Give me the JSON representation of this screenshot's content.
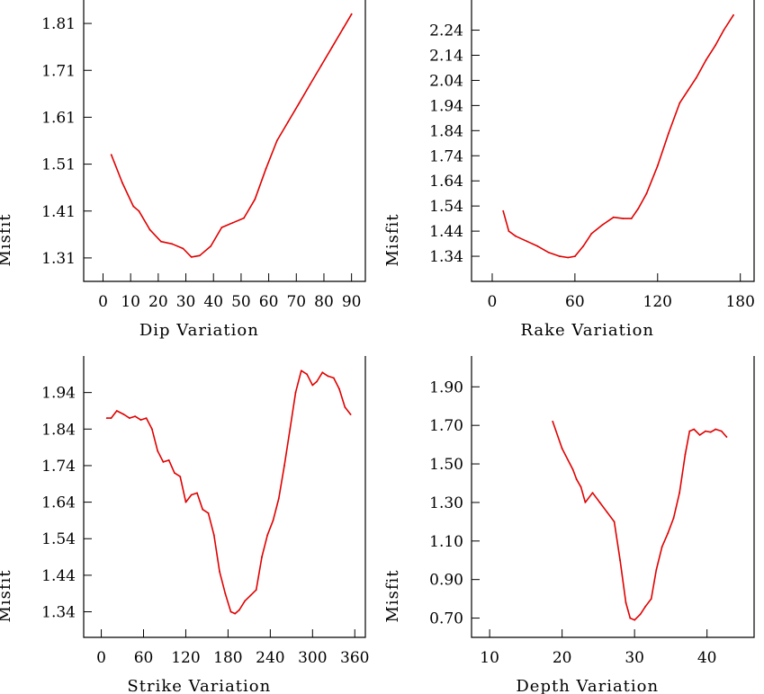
{
  "line_color": "#e00000",
  "chart_data": [
    {
      "type": "line",
      "xlabel": "Dip    Variation",
      "ylabel": "Misfit",
      "xlim": [
        -7,
        95
      ],
      "ylim": [
        1.26,
        1.86
      ],
      "xticks": [
        0,
        10,
        20,
        30,
        40,
        50,
        60,
        70,
        80,
        90
      ],
      "xtick_labels": [
        "0",
        "10",
        "20",
        "30",
        "40",
        "50",
        "60",
        "70",
        "80",
        "90"
      ],
      "yticks": [
        1.31,
        1.41,
        1.51,
        1.61,
        1.71,
        1.81
      ],
      "ytick_labels": [
        "1.31",
        "1.41",
        "1.51",
        "1.61",
        "1.71",
        "1.81"
      ],
      "x": [
        3,
        7,
        11,
        13,
        17,
        21,
        25,
        29,
        32,
        35,
        39,
        43,
        47,
        51,
        55,
        59,
        63,
        67,
        71,
        75,
        79,
        83,
        87,
        90
      ],
      "y": [
        1.53,
        1.47,
        1.42,
        1.41,
        1.37,
        1.345,
        1.34,
        1.33,
        1.312,
        1.315,
        1.335,
        1.375,
        1.385,
        1.395,
        1.435,
        1.5,
        1.56,
        1.6,
        1.64,
        1.68,
        1.72,
        1.76,
        1.8,
        1.83
      ]
    },
    {
      "type": "line",
      "xlabel": "Rake   Variation",
      "ylabel": "Misfit",
      "xlim": [
        -15,
        190
      ],
      "ylim": [
        1.24,
        2.36
      ],
      "xticks": [
        0,
        60,
        120,
        180
      ],
      "xtick_labels": [
        "0",
        "60",
        "120",
        "180"
      ],
      "yticks": [
        1.34,
        1.44,
        1.54,
        1.64,
        1.74,
        1.84,
        1.94,
        2.04,
        2.14,
        2.24
      ],
      "ytick_labels": [
        "1.34",
        "1.44",
        "1.54",
        "1.64",
        "1.74",
        "1.84",
        "1.94",
        "2.04",
        "2.14",
        "2.24"
      ],
      "x": [
        8,
        12,
        17,
        25,
        33,
        41,
        49,
        55,
        60,
        66,
        72,
        80,
        88,
        95,
        101,
        106,
        112,
        120,
        128,
        136,
        142,
        148,
        155,
        162,
        168,
        175
      ],
      "y": [
        1.52,
        1.44,
        1.42,
        1.4,
        1.38,
        1.355,
        1.34,
        1.335,
        1.34,
        1.38,
        1.43,
        1.465,
        1.495,
        1.49,
        1.49,
        1.53,
        1.59,
        1.7,
        1.83,
        1.95,
        2.0,
        2.05,
        2.12,
        2.18,
        2.24,
        2.3
      ]
    },
    {
      "type": "line",
      "xlabel": "Strike Variation",
      "ylabel": "Misfit",
      "xlim": [
        -25,
        375
      ],
      "ylim": [
        1.27,
        2.04
      ],
      "xticks": [
        0,
        60,
        120,
        180,
        240,
        300,
        360
      ],
      "xtick_labels": [
        "0",
        "60",
        "120",
        "180",
        "240",
        "300",
        "360"
      ],
      "yticks": [
        1.34,
        1.44,
        1.54,
        1.64,
        1.74,
        1.84,
        1.94
      ],
      "ytick_labels": [
        "1.34",
        "1.44",
        "1.54",
        "1.64",
        "1.74",
        "1.84",
        "1.94"
      ],
      "x": [
        8,
        14,
        22,
        32,
        40,
        48,
        56,
        64,
        72,
        80,
        88,
        96,
        104,
        112,
        120,
        128,
        136,
        144,
        152,
        160,
        168,
        176,
        184,
        190,
        196,
        204,
        212,
        220,
        228,
        236,
        244,
        252,
        260,
        268,
        276,
        284,
        292,
        300,
        306,
        314,
        322,
        330,
        338,
        346,
        354
      ],
      "y": [
        1.87,
        1.87,
        1.89,
        1.88,
        1.87,
        1.875,
        1.865,
        1.87,
        1.84,
        1.78,
        1.75,
        1.755,
        1.72,
        1.71,
        1.64,
        1.66,
        1.665,
        1.62,
        1.61,
        1.55,
        1.45,
        1.39,
        1.34,
        1.335,
        1.345,
        1.37,
        1.385,
        1.4,
        1.49,
        1.55,
        1.59,
        1.65,
        1.74,
        1.84,
        1.94,
        2.0,
        1.99,
        1.96,
        1.97,
        1.995,
        1.985,
        1.98,
        1.95,
        1.9,
        1.88
      ]
    },
    {
      "type": "line",
      "xlabel": "Depth   Variation",
      "ylabel": "Misfit",
      "xlim": [
        7.5,
        46.5
      ],
      "ylim": [
        0.6,
        2.06
      ],
      "xticks": [
        10,
        20,
        30,
        40
      ],
      "xtick_labels": [
        "10",
        "20",
        "30",
        "40"
      ],
      "yticks": [
        0.7,
        0.9,
        1.1,
        1.3,
        1.5,
        1.7,
        1.9
      ],
      "ytick_labels": [
        "0.70",
        "0.90",
        "1.10",
        "1.30",
        "1.50",
        "1.70",
        "1.90"
      ],
      "x": [
        18.7,
        20,
        21.5,
        22,
        22.6,
        23.2,
        24.2,
        25.2,
        26.2,
        27.2,
        28,
        28.8,
        29.4,
        30,
        30.8,
        31.5,
        32.3,
        33,
        33.8,
        34.6,
        35.4,
        36.2,
        37,
        37.6,
        38.2,
        39,
        39.8,
        40.5,
        41.2,
        42,
        42.7
      ],
      "y": [
        1.72,
        1.58,
        1.47,
        1.42,
        1.38,
        1.3,
        1.35,
        1.3,
        1.25,
        1.2,
        1.0,
        0.78,
        0.7,
        0.69,
        0.72,
        0.76,
        0.8,
        0.95,
        1.07,
        1.14,
        1.22,
        1.35,
        1.55,
        1.67,
        1.68,
        1.65,
        1.67,
        1.665,
        1.68,
        1.67,
        1.64
      ]
    }
  ]
}
